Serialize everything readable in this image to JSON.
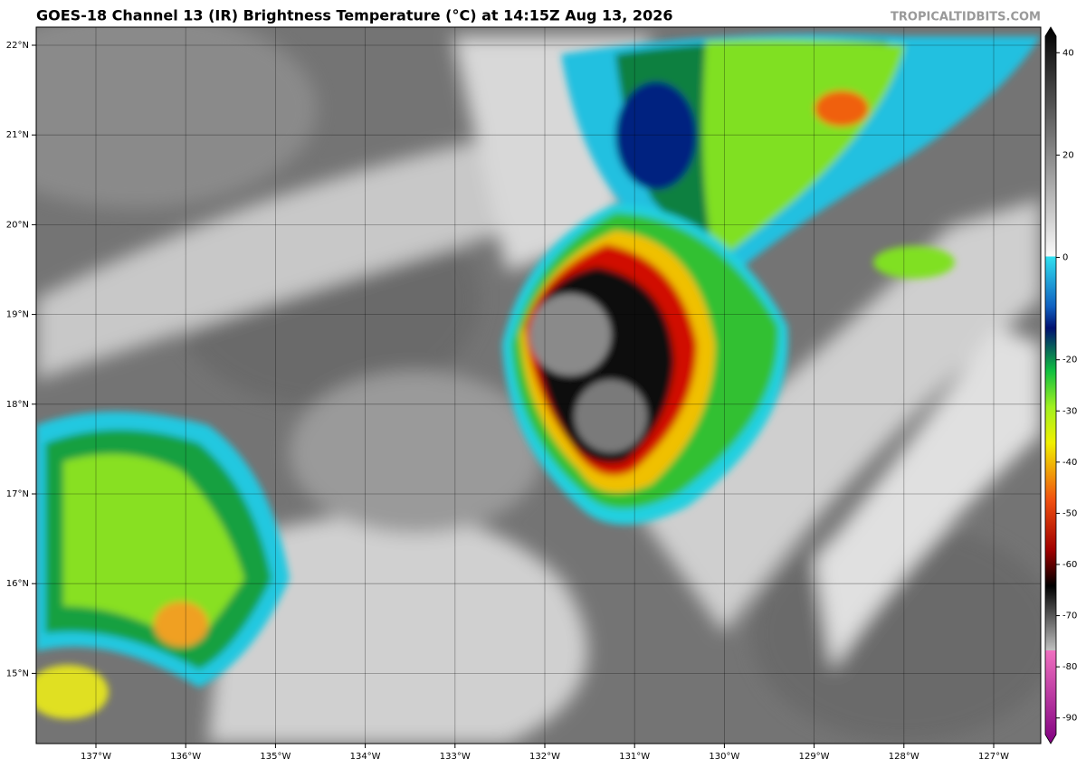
{
  "title": "GOES-18 Channel 13 (IR) Brightness Temperature (°C) at 14:15Z Aug 13, 2026",
  "credit": "TROPICALTIDBITS.COM",
  "lat_labels": [
    "22°N",
    "21°N",
    "20°N",
    "19°N",
    "18°N",
    "17°N",
    "16°N",
    "15°N"
  ],
  "lon_labels": [
    "137°W",
    "136°W",
    "135°W",
    "134°W",
    "133°W",
    "132°W",
    "131°W",
    "130°W",
    "129°W",
    "128°W",
    "127°W"
  ],
  "colorbar": {
    "range": [
      -95,
      45
    ],
    "ticks": [
      40,
      20,
      0,
      -20,
      -30,
      -40,
      -50,
      -60,
      -70,
      -80,
      -90
    ]
  }
}
